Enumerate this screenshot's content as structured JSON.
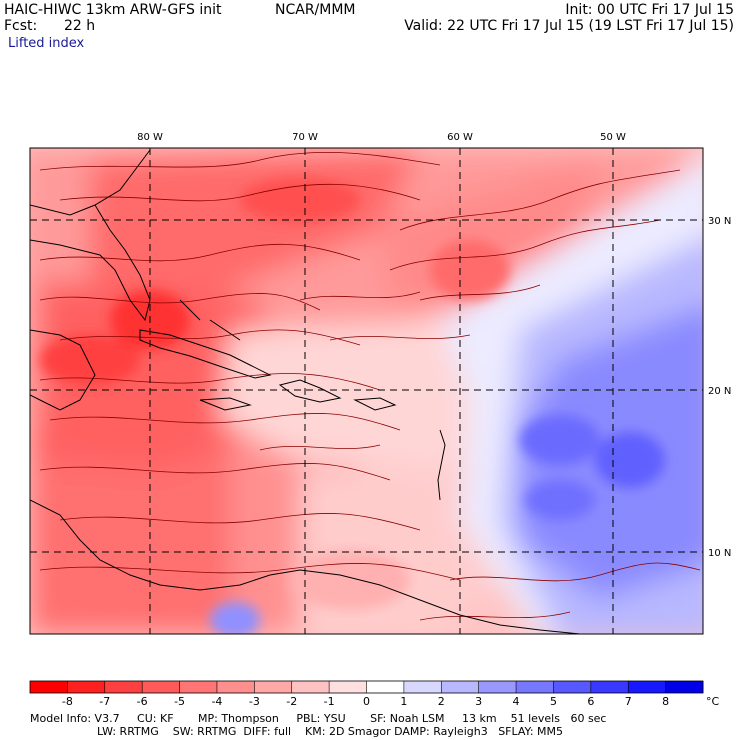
{
  "header": {
    "model": "HAIC-HIWC 13km ARW-GFS init",
    "org": "NCAR/MMM",
    "init": "Init: 00 UTC Fri 17 Jul 15",
    "fcst_label": "Fcst:",
    "fcst_value": "22 h",
    "valid": "Valid: 22 UTC Fri 17 Jul 15 (19 LST Fri 17 Jul 15)",
    "field": "Lifted index"
  },
  "map": {
    "lon_labels": [
      "80 W",
      "70 W",
      "60 W",
      "50 W"
    ],
    "lat_labels": [
      "30 N",
      "20 N",
      "10 N"
    ]
  },
  "colorbar": {
    "levels": [
      "-8",
      "-7",
      "-6",
      "-5",
      "-4",
      "-3",
      "-2",
      "-1",
      "0",
      "1",
      "2",
      "3",
      "4",
      "5",
      "6",
      "7",
      "8"
    ],
    "unit": "°C",
    "colors": [
      "#ff0000",
      "#ff2020",
      "#ff4040",
      "#ff5a5a",
      "#ff7474",
      "#ff8e8e",
      "#ffa8a8",
      "#ffc2c2",
      "#ffe0e0",
      "#ffffff",
      "#d8d8ff",
      "#b8b8ff",
      "#9898ff",
      "#7878ff",
      "#5858ff",
      "#3838ff",
      "#1818ff",
      "#0000e8"
    ]
  },
  "footer": {
    "line1": "Model Info: V3.7     CU: KF       MP: Thompson     PBL: YSU       SF: Noah LSM     13 km    51 levels   60 sec",
    "line2": "LW: RRTMG    SW: RRTMG  DIFF: full    KM: 2D Smagor DAMP: Rayleigh3   SFLAY: MM5"
  }
}
